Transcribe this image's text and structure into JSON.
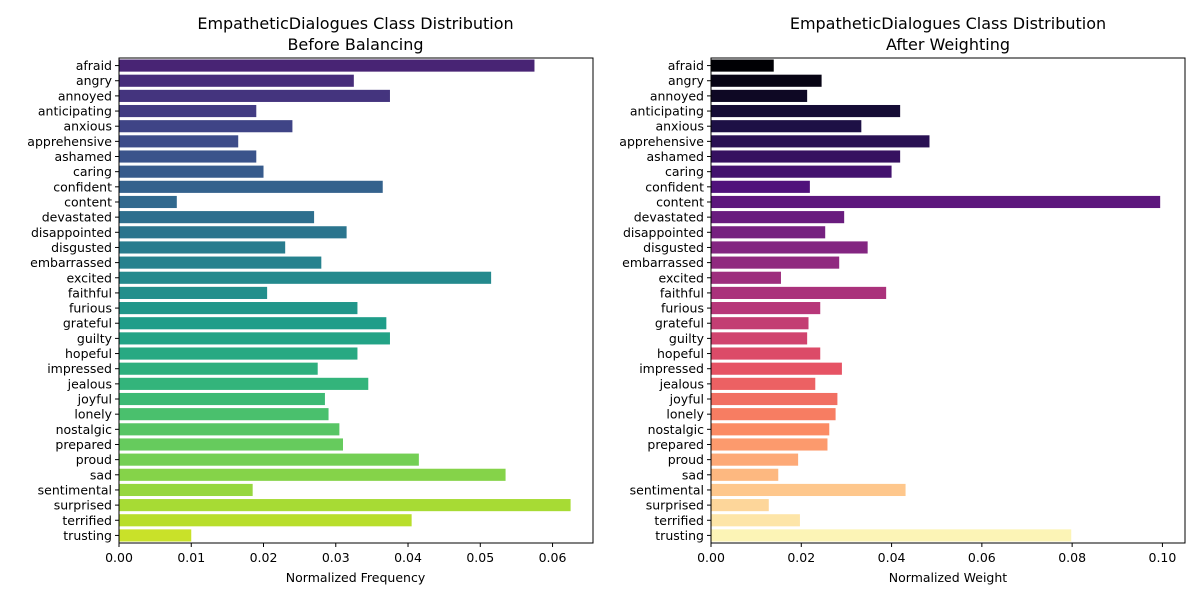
{
  "chart_data": [
    {
      "type": "bar",
      "orientation": "horizontal",
      "title": "EmpatheticDialogues Class Distribution",
      "subtitle": "Before Balancing",
      "xlabel": "Normalized Frequency",
      "xlim": [
        0,
        0.0656
      ],
      "xticks": [
        "0.00",
        "0.01",
        "0.02",
        "0.03",
        "0.04",
        "0.05",
        "0.06"
      ],
      "xtick_values": [
        0,
        0.01,
        0.02,
        0.03,
        0.04,
        0.05,
        0.06
      ],
      "palette": "viridis",
      "categories": [
        "afraid",
        "angry",
        "annoyed",
        "anticipating",
        "anxious",
        "apprehensive",
        "ashamed",
        "caring",
        "confident",
        "content",
        "devastated",
        "disappointed",
        "disgusted",
        "embarrassed",
        "excited",
        "faithful",
        "furious",
        "grateful",
        "guilty",
        "hopeful",
        "impressed",
        "jealous",
        "joyful",
        "lonely",
        "nostalgic",
        "prepared",
        "proud",
        "sad",
        "sentimental",
        "surprised",
        "terrified",
        "trusting"
      ],
      "values": [
        0.0575,
        0.0325,
        0.0375,
        0.019,
        0.024,
        0.0165,
        0.019,
        0.02,
        0.0365,
        0.008,
        0.027,
        0.0315,
        0.023,
        0.028,
        0.0515,
        0.0205,
        0.033,
        0.037,
        0.0375,
        0.033,
        0.0275,
        0.0345,
        0.0285,
        0.029,
        0.0305,
        0.031,
        0.0415,
        0.0535,
        0.0185,
        0.0625,
        0.0405,
        0.01
      ]
    },
    {
      "type": "bar",
      "orientation": "horizontal",
      "title": "EmpatheticDialogues Class Distribution",
      "subtitle": "After Weighting",
      "xlabel": "Normalized Weight",
      "xlim": [
        0,
        0.105
      ],
      "xticks": [
        "0.00",
        "0.02",
        "0.04",
        "0.06",
        "0.08",
        "0.10"
      ],
      "xtick_values": [
        0,
        0.02,
        0.04,
        0.06,
        0.08,
        0.1
      ],
      "palette": "magma",
      "categories": [
        "afraid",
        "angry",
        "annoyed",
        "anticipating",
        "anxious",
        "apprehensive",
        "ashamed",
        "caring",
        "confident",
        "content",
        "devastated",
        "disappointed",
        "disgusted",
        "embarrassed",
        "excited",
        "faithful",
        "furious",
        "grateful",
        "guilty",
        "hopeful",
        "impressed",
        "jealous",
        "joyful",
        "lonely",
        "nostalgic",
        "prepared",
        "proud",
        "sad",
        "sentimental",
        "surprised",
        "terrified",
        "trusting"
      ],
      "values": [
        0.0139,
        0.0245,
        0.0213,
        0.0419,
        0.0333,
        0.0484,
        0.0419,
        0.04,
        0.0219,
        0.0995,
        0.0295,
        0.0253,
        0.0347,
        0.0284,
        0.0155,
        0.0388,
        0.0242,
        0.0216,
        0.0213,
        0.0242,
        0.029,
        0.0231,
        0.028,
        0.0276,
        0.0262,
        0.0258,
        0.0193,
        0.0149,
        0.0431,
        0.0128,
        0.0197,
        0.0798
      ]
    }
  ]
}
